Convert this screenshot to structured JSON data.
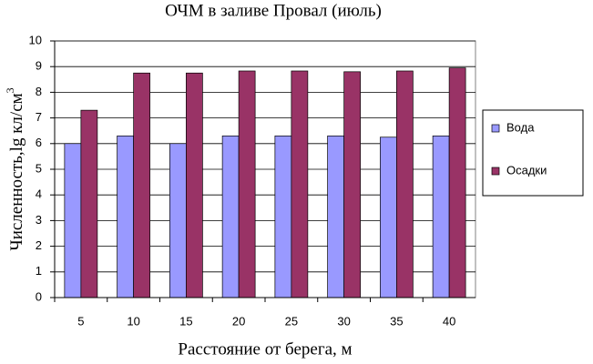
{
  "chart_data": {
    "type": "bar",
    "title": "ОЧМ в заливе Провал (июль)",
    "x_label": "Расстояние от берега, м",
    "y_label": "Численность,lg кл/см",
    "y_label_superscript": "3",
    "categories": [
      "5",
      "10",
      "15",
      "20",
      "25",
      "30",
      "35",
      "40"
    ],
    "series": [
      {
        "name": "Вода",
        "color": "#9999ff",
        "values": [
          6.0,
          6.3,
          6.0,
          6.3,
          6.3,
          6.3,
          6.25,
          6.3
        ]
      },
      {
        "name": "Осадки",
        "color": "#993366",
        "values": [
          7.3,
          8.75,
          8.75,
          8.83,
          8.83,
          8.8,
          8.83,
          8.95
        ]
      }
    ],
    "ylim": [
      0,
      10
    ],
    "yticks": [
      0,
      1,
      2,
      3,
      4,
      5,
      6,
      7,
      8,
      9,
      10
    ],
    "grid": true,
    "legend": "right"
  }
}
